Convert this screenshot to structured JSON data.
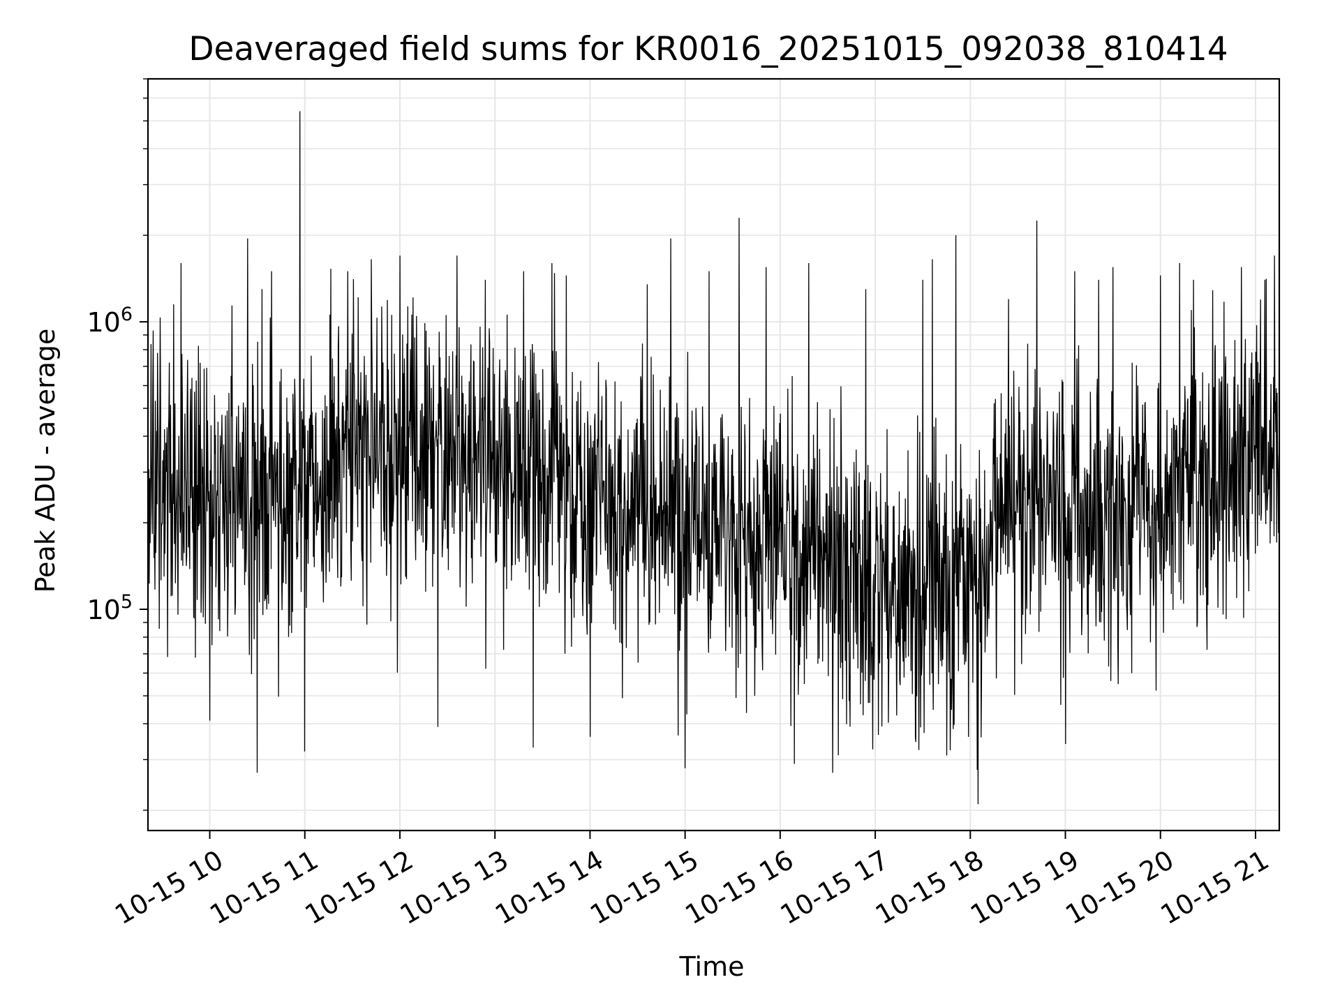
{
  "chart_data": {
    "type": "line",
    "title": "Deaveraged field sums for KR0016_20251015_092038_810414",
    "xlabel": "Time",
    "ylabel": "Peak ADU - average",
    "yscale": "log",
    "ylim": [
      17000,
      7000000
    ],
    "xlim_hours": [
      9.35,
      21.25
    ],
    "grid": true,
    "line_color": "#000000",
    "x_ticks": [
      {
        "hour": 10,
        "label": "10-15 10"
      },
      {
        "hour": 11,
        "label": "10-15 11"
      },
      {
        "hour": 12,
        "label": "10-15 12"
      },
      {
        "hour": 13,
        "label": "10-15 13"
      },
      {
        "hour": 14,
        "label": "10-15 14"
      },
      {
        "hour": 15,
        "label": "10-15 15"
      },
      {
        "hour": 16,
        "label": "10-15 16"
      },
      {
        "hour": 17,
        "label": "10-15 17"
      },
      {
        "hour": 18,
        "label": "10-15 18"
      },
      {
        "hour": 19,
        "label": "10-15 19"
      },
      {
        "hour": 20,
        "label": "10-15 20"
      },
      {
        "hour": 21,
        "label": "10-15 21"
      }
    ],
    "y_ticks": [
      {
        "value": 100000,
        "base": "10",
        "exp": "5"
      },
      {
        "value": 1000000,
        "base": "10",
        "exp": "6"
      }
    ],
    "series": [
      {
        "name": "Deaveraged field sum",
        "baseline": [
          [
            9.35,
            260000
          ],
          [
            10.0,
            250000
          ],
          [
            10.5,
            240000
          ],
          [
            11.0,
            260000
          ],
          [
            11.5,
            330000
          ],
          [
            12.0,
            330000
          ],
          [
            12.5,
            320000
          ],
          [
            13.0,
            300000
          ],
          [
            13.5,
            290000
          ],
          [
            14.0,
            240000
          ],
          [
            14.5,
            220000
          ],
          [
            15.0,
            200000
          ],
          [
            15.5,
            180000
          ],
          [
            16.0,
            165000
          ],
          [
            16.5,
            145000
          ],
          [
            17.0,
            125000
          ],
          [
            17.5,
            120000
          ],
          [
            17.7,
            110000
          ],
          [
            18.0,
            120000
          ],
          [
            18.2,
            130000
          ],
          [
            18.25,
            240000
          ],
          [
            18.5,
            220000
          ],
          [
            19.0,
            200000
          ],
          [
            19.5,
            210000
          ],
          [
            20.0,
            250000
          ],
          [
            20.5,
            300000
          ],
          [
            21.0,
            360000
          ],
          [
            21.25,
            380000
          ]
        ],
        "spikes": [
          [
            9.45,
            780000
          ],
          [
            9.62,
            1150000
          ],
          [
            9.7,
            1600000
          ],
          [
            9.9,
            720000
          ],
          [
            10.0,
            41000
          ],
          [
            10.4,
            1950000
          ],
          [
            10.5,
            27000
          ],
          [
            10.55,
            1300000
          ],
          [
            10.65,
            1500000
          ],
          [
            10.95,
            5400000
          ],
          [
            11.0,
            32000
          ],
          [
            11.45,
            1500000
          ],
          [
            11.7,
            1650000
          ],
          [
            12.0,
            1700000
          ],
          [
            12.4,
            39000
          ],
          [
            12.6,
            1700000
          ],
          [
            12.9,
            1400000
          ],
          [
            13.3,
            1500000
          ],
          [
            13.4,
            33000
          ],
          [
            13.6,
            1600000
          ],
          [
            13.75,
            1450000
          ],
          [
            14.0,
            36000
          ],
          [
            14.6,
            1350000
          ],
          [
            14.85,
            1950000
          ],
          [
            15.0,
            28000
          ],
          [
            15.25,
            1500000
          ],
          [
            15.57,
            2300000
          ],
          [
            15.85,
            1550000
          ],
          [
            16.15,
            29000
          ],
          [
            16.3,
            1600000
          ],
          [
            16.55,
            27000
          ],
          [
            16.9,
            1300000
          ],
          [
            17.5,
            1400000
          ],
          [
            17.6,
            1650000
          ],
          [
            17.75,
            31000
          ],
          [
            17.85,
            2000000
          ],
          [
            18.08,
            21000
          ],
          [
            18.4,
            1200000
          ],
          [
            18.7,
            2250000
          ],
          [
            19.0,
            34000
          ],
          [
            19.1,
            1500000
          ],
          [
            19.35,
            1400000
          ],
          [
            19.5,
            1550000
          ],
          [
            20.0,
            1450000
          ],
          [
            20.2,
            1600000
          ],
          [
            20.35,
            1400000
          ],
          [
            20.85,
            1550000
          ],
          [
            21.1,
            1400000
          ],
          [
            21.2,
            1700000
          ]
        ]
      }
    ]
  }
}
